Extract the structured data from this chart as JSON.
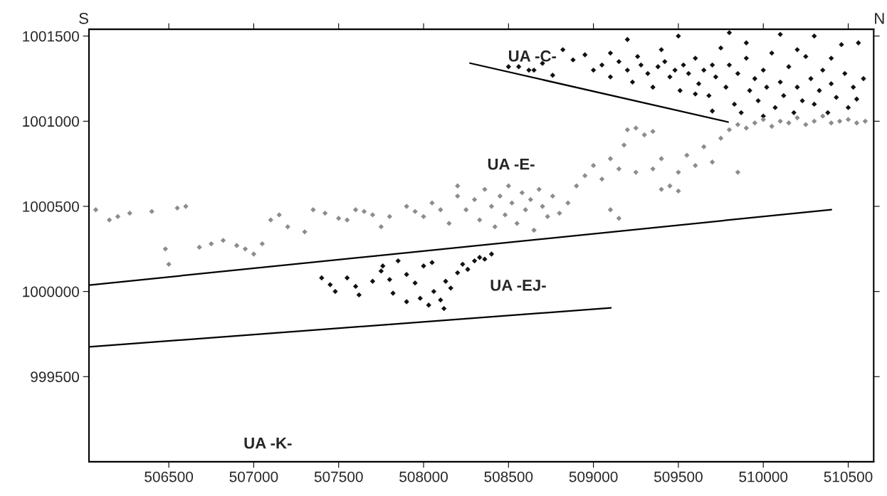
{
  "chart_data": {
    "type": "scatter",
    "grid": false,
    "legend": false,
    "xlim": [
      506030,
      510650
    ],
    "ylim": [
      999000,
      1001540
    ],
    "xticks": [
      506500,
      507000,
      507500,
      508000,
      508500,
      509000,
      509500,
      510000,
      510500
    ],
    "yticks": [
      999500,
      1000000,
      1000500,
      1001000,
      1001500
    ],
    "annotations": [
      "S",
      "N",
      "UA -C-",
      "UA -E-",
      "UA -EJ-",
      "UA -K-"
    ],
    "series": [
      {
        "marker": "diamond",
        "color": "#111111",
        "x": [
          508500,
          508560,
          508620,
          508700,
          508760,
          508820,
          508880,
          508950,
          509000,
          509050,
          509100,
          509150,
          509200,
          509230,
          509280,
          509320,
          509350,
          509380,
          509420,
          509450,
          509480,
          509510,
          509530,
          509560,
          509600,
          509620,
          509650,
          509680,
          509700,
          509720,
          509750,
          509780,
          509800,
          509830,
          509850,
          509870,
          509900,
          509920,
          509950,
          509970,
          510000,
          510020,
          510050,
          510070,
          510100,
          510120,
          510150,
          510180,
          510200,
          510230,
          510250,
          510280,
          510300,
          510330,
          510350,
          510380,
          510400,
          510430,
          510460,
          510480,
          510500,
          510530,
          510560,
          510590,
          509200,
          509500,
          509800,
          510100,
          510300,
          509700,
          510000,
          509400,
          509900,
          510200,
          509600,
          509260,
          508650,
          509100,
          510400,
          510550
        ],
        "values": [
          1001320,
          1001320,
          1001300,
          1001340,
          1001270,
          1001420,
          1001360,
          1001390,
          1001300,
          1001330,
          1001260,
          1001350,
          1001300,
          1001230,
          1001330,
          1001280,
          1001200,
          1001320,
          1001350,
          1001260,
          1001300,
          1001180,
          1001330,
          1001280,
          1001370,
          1001220,
          1001300,
          1001150,
          1001330,
          1001260,
          1001430,
          1001200,
          1001330,
          1001100,
          1001280,
          1001050,
          1001370,
          1001180,
          1001250,
          1001120,
          1001300,
          1001200,
          1001400,
          1001080,
          1001230,
          1001150,
          1001320,
          1001050,
          1001200,
          1001120,
          1001380,
          1001250,
          1001100,
          1001180,
          1001300,
          1001050,
          1001220,
          1001140,
          1001450,
          1001280,
          1001080,
          1001200,
          1001460,
          1001250,
          1001480,
          1001500,
          1001520,
          1001510,
          1001500,
          1001060,
          1001030,
          1001420,
          1001460,
          1001420,
          1001160,
          1001380,
          1001300,
          1001400,
          1001370,
          1001130
        ]
      },
      {
        "marker": "diamond",
        "color": "#8c8c8c",
        "x": [
          506070,
          506150,
          506200,
          506270,
          506400,
          506480,
          506500,
          506550,
          506600,
          506680,
          506750,
          506820,
          506900,
          506950,
          507000,
          507050,
          507100,
          507150,
          507200,
          507300,
          507350,
          507420,
          507500,
          507550,
          507600,
          507650,
          507700,
          507800,
          507900,
          507950,
          508000,
          508050,
          508100,
          508150,
          508200,
          508250,
          508300,
          508330,
          508360,
          508400,
          508420,
          508450,
          508480,
          508500,
          508520,
          508550,
          508580,
          508600,
          508630,
          508650,
          508680,
          508700,
          508730,
          508760,
          508800,
          508850,
          508900,
          508950,
          509000,
          509050,
          509100,
          509150,
          509180,
          509200,
          509250,
          509300,
          509350,
          509250,
          509350,
          509400,
          509450,
          509500,
          509550,
          509600,
          509650,
          509700,
          509750,
          509800,
          509850,
          509900,
          509950,
          510000,
          510050,
          510100,
          510150,
          510200,
          510250,
          510300,
          510350,
          510400,
          510450,
          510500,
          510550,
          510600,
          509150,
          509100,
          509500,
          509400,
          509850,
          508200,
          507750
        ],
        "values": [
          1000480,
          1000420,
          1000440,
          1000460,
          1000470,
          1000250,
          1000160,
          1000490,
          1000500,
          1000260,
          1000280,
          1000300,
          1000270,
          1000250,
          1000220,
          1000280,
          1000420,
          1000450,
          1000380,
          1000350,
          1000480,
          1000460,
          1000430,
          1000420,
          1000480,
          1000470,
          1000450,
          1000440,
          1000500,
          1000470,
          1000440,
          1000520,
          1000480,
          1000400,
          1000560,
          1000480,
          1000540,
          1000420,
          1000600,
          1000500,
          1000380,
          1000560,
          1000450,
          1000620,
          1000520,
          1000400,
          1000580,
          1000480,
          1000540,
          1000360,
          1000600,
          1000500,
          1000440,
          1000560,
          1000460,
          1000520,
          1000620,
          1000680,
          1000740,
          1000660,
          1000780,
          1000720,
          1000860,
          1000950,
          1000960,
          1000920,
          1000940,
          1000700,
          1000720,
          1000780,
          1000620,
          1000700,
          1000800,
          1000740,
          1000850,
          1000760,
          1000900,
          1000950,
          1000980,
          1000960,
          1000990,
          1001010,
          1000970,
          1001000,
          1000990,
          1001020,
          1000980,
          1001000,
          1001030,
          1000990,
          1001000,
          1001010,
          1000990,
          1001000,
          1000430,
          1000480,
          1000590,
          1000600,
          1000700,
          1000620,
          1000380
        ]
      },
      {
        "marker": "diamond",
        "color": "#111111",
        "x": [
          507400,
          507450,
          507480,
          507550,
          507600,
          507620,
          507700,
          507750,
          507800,
          507820,
          507850,
          507900,
          507950,
          507980,
          508000,
          508030,
          508060,
          508100,
          508130,
          508160,
          508200,
          508230,
          508260,
          508300,
          508330,
          508360,
          508400,
          508050,
          507760,
          508120,
          507900
        ],
        "values": [
          1000080,
          1000040,
          1000000,
          1000080,
          1000030,
          999980,
          1000060,
          1000120,
          1000070,
          999990,
          1000180,
          1000100,
          1000050,
          999960,
          1000150,
          999920,
          1000000,
          999950,
          1000060,
          1000020,
          1000110,
          1000160,
          1000130,
          1000180,
          1000200,
          1000190,
          1000220,
          1000170,
          1000150,
          999900,
          999940
        ]
      },
      {
        "type": "line",
        "color": "#000000",
        "x": [
          506033,
          510401
        ],
        "values": [
          1000038,
          1000481
        ]
      },
      {
        "type": "line",
        "color": "#000000",
        "x": [
          506033,
          509103
        ],
        "values": [
          999675,
          999904
        ]
      },
      {
        "type": "line",
        "color": "#000000",
        "x": [
          508273,
          509793
        ],
        "values": [
          1001341,
          1000995
        ]
      }
    ]
  }
}
